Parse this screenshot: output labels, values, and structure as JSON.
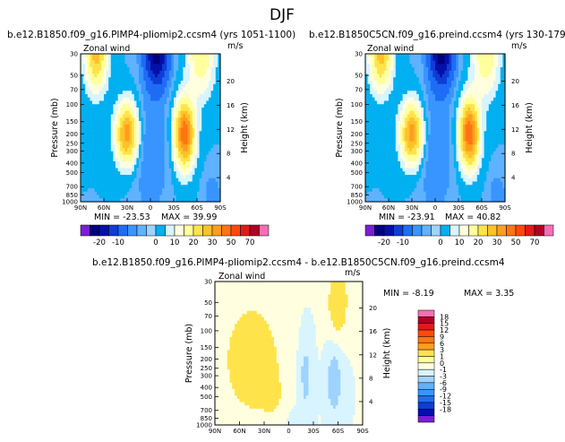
{
  "chart_data": {
    "type": "contour",
    "title": "DJF",
    "colors": {
      "pos": [
        "#ffffe0",
        "#ffff9c",
        "#ffe34a",
        "#ffc12a",
        "#ff9d1e",
        "#ff7513",
        "#ff4a0a",
        "#e31a1c",
        "#b00026",
        "#8b0a24",
        "#f46fb4"
      ],
      "neg": [
        "#d8f4ff",
        "#9ed2ff",
        "#5eb2ff",
        "#3895ff",
        "#1f6cf5",
        "#0e3dd6",
        "#0410a8",
        "#000080",
        "#7a1fd6"
      ],
      "zero": "#00b0f0"
    },
    "panels": [
      {
        "title": "b.e12.B1850.f09_g16.PIMP4-pliomip2.ccsm4  (yrs 1051-1100)",
        "field": "Zonal wind",
        "units": "m/s",
        "min_label": "MIN = -23.53",
        "max_label": "MAX = 39.99",
        "min": -23.53,
        "max": 39.99,
        "jet_sh_strength": 1.0
      },
      {
        "title": "b.e12.B1850C5CN.f09_g16.preind.ccsm4  (yrs 130-179)",
        "field": "Zonal wind",
        "units": "m/s",
        "min_label": "MIN = -23.91",
        "max_label": "MAX = 40.82",
        "min": -23.91,
        "max": 40.82,
        "jet_sh_strength": 1.02
      }
    ],
    "diff_panel": {
      "title": "b.e12.B1850.f09_g16.PIMP4-pliomip2.ccsm4 - b.e12.B1850C5CN.f09_g16.preind.ccsm4",
      "field": "Zonal wind",
      "units": "m/s",
      "min_label": "MIN = -8.19",
      "max_label": "MAX = 3.35",
      "min": -8.19,
      "max": 3.35
    },
    "colorbar_main": {
      "levels": [
        -20,
        -10,
        0,
        10,
        20,
        30,
        50,
        70
      ],
      "labels": [
        "-20",
        "-10",
        "0",
        "10",
        "20",
        "30",
        "50",
        "70"
      ]
    },
    "colorbar_diff": {
      "levels": [
        18,
        15,
        12,
        9,
        6,
        3,
        1,
        0,
        -1,
        -3,
        -6,
        -9,
        -12,
        -15,
        -18
      ],
      "labels": [
        "18",
        "15",
        "12",
        "9",
        "6",
        "3",
        "1",
        "0",
        "-1",
        "-3",
        "-6",
        "-9",
        "-12",
        "-15",
        "-18"
      ]
    },
    "x_axis": {
      "ticks": [
        "90N",
        "60N",
        "30N",
        "0",
        "30S",
        "60S",
        "90S"
      ],
      "range": [
        90,
        -90
      ]
    },
    "y_axis": {
      "label": "Pressure (mb)",
      "ticks": [
        30,
        50,
        70,
        100,
        150,
        200,
        250,
        300,
        400,
        500,
        700,
        850,
        1000
      ],
      "range": [
        30,
        1000
      ]
    },
    "y2_axis": {
      "label": "Height (km)",
      "ticks": [
        4,
        8,
        12,
        16,
        20
      ]
    }
  }
}
